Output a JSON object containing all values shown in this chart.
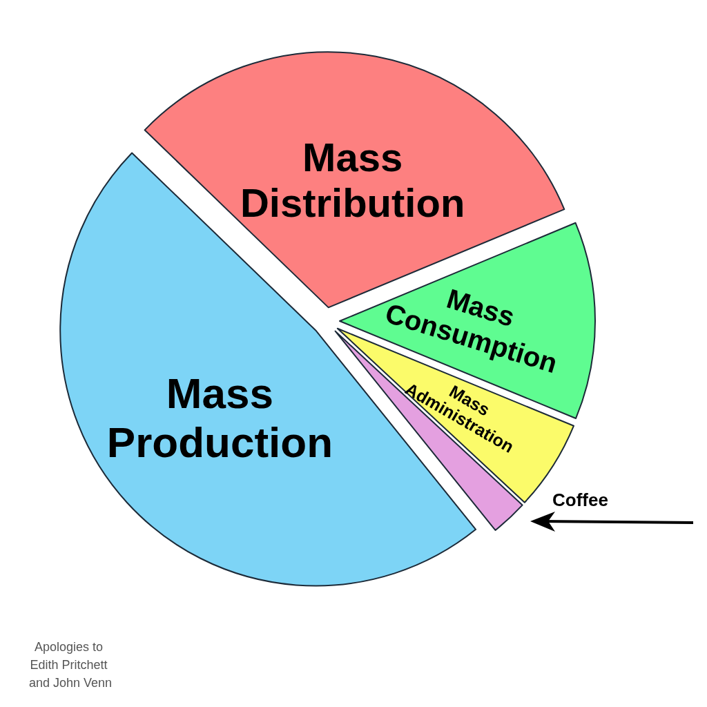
{
  "chart_data": {
    "type": "pie",
    "categories": [
      "Mass Distribution",
      "Mass Consumption",
      "Mass Administration",
      "Coffee",
      "Mass Production"
    ],
    "values": [
      31.5,
      12.5,
      5.7,
      2.3,
      48
    ],
    "colors": [
      "#fd8080",
      "#5ffc91",
      "#fbfb6a",
      "#e4a0e0",
      "#7dd4f6"
    ],
    "legend": false,
    "annotations": [
      "Apologies to Edith Pritchett and John Venn"
    ]
  }
}
